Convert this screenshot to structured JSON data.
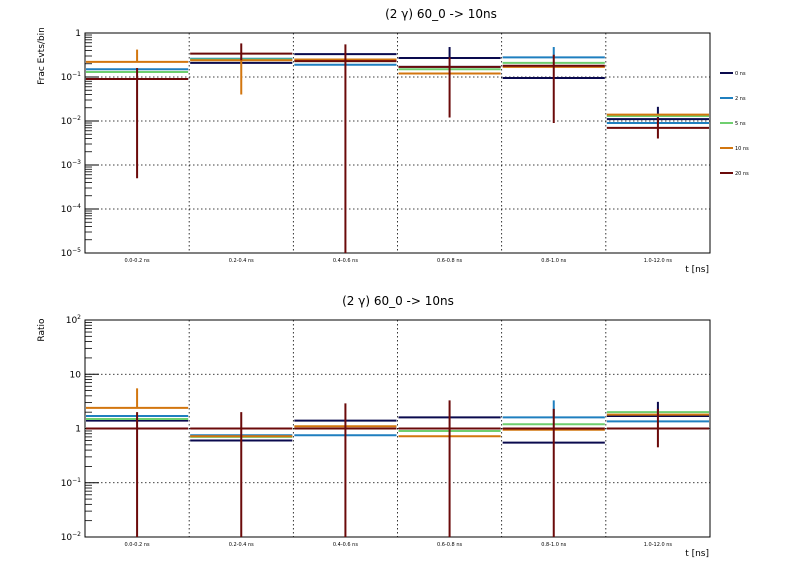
{
  "colors": {
    "0 ns": "#0a0a4e",
    "2 ns": "#1f7fbf",
    "5 ns": "#6fcf6f",
    "10 ns": "#d2760f",
    "20 ns": "#6b0a0a"
  },
  "chart_data": [
    {
      "type": "line",
      "title": "(2 γ) 60_0 -> 10ns",
      "xlabel": "t [ns]",
      "ylabel": "Frac Evts/bin",
      "yscale": "log",
      "ylim": [
        1e-05,
        1
      ],
      "y_ticks": [
        {
          "value": 1,
          "label": "1"
        },
        {
          "value": 0.1,
          "label": "10",
          "exp": "−1"
        },
        {
          "value": 0.01,
          "label": "10",
          "exp": "−2"
        },
        {
          "value": 0.001,
          "label": "10",
          "exp": "−3"
        },
        {
          "value": 0.0001,
          "label": "10",
          "exp": "−4"
        },
        {
          "value": 1e-05,
          "label": "10",
          "exp": "−5"
        }
      ],
      "grid": true,
      "legend_position": "right",
      "categories": [
        "0.0-0.2 ns",
        "0.2-0.4 ns",
        "0.4-0.6 ns",
        "0.6-0.8 ns",
        "0.8-1.0 ns",
        "1.0-12.0 ns"
      ],
      "series": [
        {
          "name": "0 ns",
          "values": [
            0.09,
            0.21,
            0.33,
            0.27,
            0.095,
            0.011
          ],
          "err_low": [
            null,
            null,
            null,
            null,
            null,
            0.0085
          ],
          "err_high": [
            null,
            null,
            null,
            0.48,
            null,
            0.021
          ]
        },
        {
          "name": "2 ns",
          "values": [
            0.15,
            0.26,
            0.19,
            0.17,
            0.28,
            0.009
          ],
          "err_low": [
            null,
            null,
            null,
            null,
            null,
            null
          ],
          "err_high": [
            null,
            null,
            null,
            null,
            0.48,
            null
          ]
        },
        {
          "name": "5 ns",
          "values": [
            0.13,
            0.25,
            0.23,
            0.15,
            0.21,
            0.013
          ],
          "err_low": [
            null,
            null,
            null,
            null,
            null,
            null
          ],
          "err_high": [
            null,
            null,
            null,
            null,
            null,
            null
          ]
        },
        {
          "name": "10 ns",
          "values": [
            0.22,
            0.24,
            0.25,
            0.12,
            0.17,
            0.014
          ],
          "err_low": [
            null,
            0.04,
            null,
            null,
            null,
            null
          ],
          "err_high": [
            0.42,
            null,
            null,
            null,
            null,
            null
          ]
        },
        {
          "name": "20 ns",
          "values": [
            0.09,
            0.34,
            0.23,
            0.17,
            0.18,
            0.007
          ],
          "err_low": [
            0.0005,
            0.24,
            1e-05,
            0.012,
            0.009,
            0.004
          ],
          "err_high": [
            0.16,
            0.58,
            0.55,
            0.28,
            0.32,
            0.012
          ]
        }
      ]
    },
    {
      "type": "line",
      "title": "(2 γ) 60_0 -> 10ns",
      "xlabel": "t [ns]",
      "ylabel": "Ratio",
      "yscale": "log",
      "ylim": [
        0.01,
        100
      ],
      "y_ticks": [
        {
          "value": 100,
          "label": "10",
          "exp": "2"
        },
        {
          "value": 10,
          "label": "10"
        },
        {
          "value": 1,
          "label": "1"
        },
        {
          "value": 0.1,
          "label": "10",
          "exp": "−1"
        },
        {
          "value": 0.01,
          "label": "10",
          "exp": "−2"
        }
      ],
      "grid": true,
      "categories": [
        "0.0-0.2 ns",
        "0.2-0.4 ns",
        "0.4-0.6 ns",
        "0.6-0.8 ns",
        "0.8-1.0 ns",
        "1.0-12.0 ns"
      ],
      "series": [
        {
          "name": "0 ns",
          "values": [
            1.4,
            0.6,
            1.4,
            1.6,
            0.55,
            1.7
          ],
          "err_low": [
            null,
            null,
            null,
            null,
            null,
            null
          ],
          "err_high": [
            null,
            null,
            null,
            null,
            null,
            3.1
          ]
        },
        {
          "name": "2 ns",
          "values": [
            1.7,
            0.75,
            0.75,
            1.0,
            1.6,
            1.35
          ],
          "err_low": [
            null,
            null,
            null,
            null,
            null,
            null
          ],
          "err_high": [
            null,
            null,
            null,
            null,
            3.3,
            null
          ]
        },
        {
          "name": "5 ns",
          "values": [
            1.5,
            0.7,
            1.0,
            0.9,
            1.2,
            2.0
          ],
          "err_low": [
            null,
            null,
            null,
            null,
            null,
            null
          ],
          "err_high": [
            null,
            null,
            null,
            null,
            null,
            null
          ]
        },
        {
          "name": "10 ns",
          "values": [
            2.4,
            0.72,
            1.1,
            0.72,
            0.95,
            1.8
          ],
          "err_low": [
            null,
            null,
            null,
            null,
            null,
            null
          ],
          "err_high": [
            5.5,
            null,
            null,
            null,
            null,
            null
          ]
        },
        {
          "name": "20 ns",
          "values": [
            1.0,
            1.0,
            1.0,
            1.0,
            1.0,
            1.0
          ],
          "err_low": [
            0.01,
            0.01,
            0.01,
            0.01,
            0.01,
            0.45
          ],
          "err_high": [
            2.0,
            2.0,
            2.9,
            3.3,
            2.3,
            2.3
          ]
        }
      ]
    }
  ]
}
